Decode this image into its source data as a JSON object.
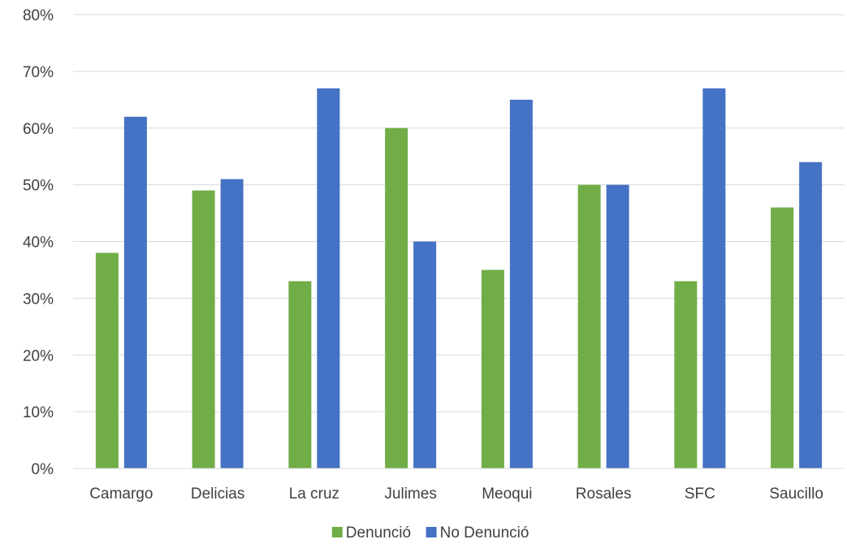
{
  "chart_data": {
    "type": "bar",
    "categories": [
      "Camargo",
      "Delicias",
      "La cruz",
      "Julimes",
      "Meoqui",
      "Rosales",
      "SFC",
      "Saucillo"
    ],
    "series": [
      {
        "name": "Denunció",
        "color": "#70ad47",
        "values": [
          38,
          49,
          33,
          60,
          35,
          50,
          33,
          46
        ]
      },
      {
        "name": "No Denunció",
        "color": "#4472c4",
        "values": [
          62,
          51,
          67,
          40,
          65,
          50,
          67,
          54
        ]
      }
    ],
    "yticks": [
      "0%",
      "10%",
      "20%",
      "30%",
      "40%",
      "50%",
      "60%",
      "70%",
      "80%"
    ],
    "ylim": [
      0,
      80
    ],
    "y_unit": "%",
    "grid": true,
    "legend_position": "bottom",
    "title": "",
    "xlabel": "",
    "ylabel": ""
  }
}
